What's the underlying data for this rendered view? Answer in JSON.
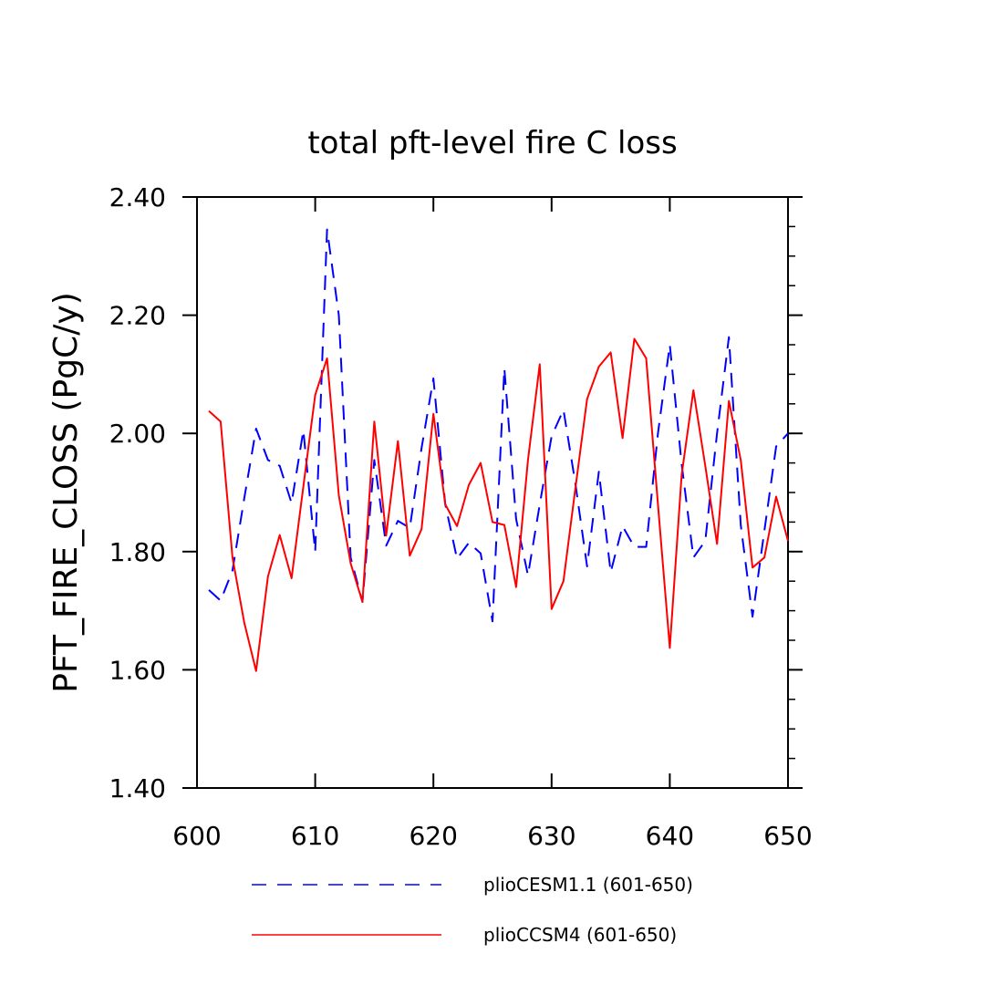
{
  "chart_data": {
    "type": "line",
    "title": "total pft-level fire C loss",
    "xlabel": "",
    "ylabel": "PFT_FIRE_CLOSS  (PgC/y)",
    "xlim": [
      600,
      650
    ],
    "ylim": [
      1.4,
      2.4
    ],
    "x_ticks": [
      600,
      610,
      620,
      630,
      640,
      650
    ],
    "x_tick_labels": [
      "600",
      "610",
      "620",
      "630",
      "640",
      "650"
    ],
    "y_ticks": [
      1.4,
      1.6,
      1.8,
      2.0,
      2.2,
      2.4
    ],
    "y_tick_labels": [
      "1.40",
      "1.60",
      "1.80",
      "2.00",
      "2.20",
      "2.40"
    ],
    "grid": false,
    "legend_position": "bottom",
    "x": [
      601,
      602,
      603,
      604,
      605,
      606,
      607,
      608,
      609,
      610,
      611,
      612,
      613,
      614,
      615,
      616,
      617,
      618,
      619,
      620,
      621,
      622,
      623,
      624,
      625,
      626,
      627,
      628,
      629,
      630,
      631,
      632,
      633,
      634,
      635,
      636,
      637,
      638,
      639,
      640,
      641,
      642,
      643,
      644,
      645,
      646,
      647,
      648,
      649,
      650
    ],
    "series": [
      {
        "name": "plioCESM1.1 (601-650)",
        "color": "#0000ff",
        "dash": "dashed",
        "values": [
          1.735,
          1.717,
          1.768,
          1.89,
          2.008,
          1.955,
          1.945,
          1.882,
          2.005,
          1.8,
          2.345,
          2.2,
          1.79,
          1.715,
          1.955,
          1.81,
          1.852,
          1.84,
          1.975,
          2.093,
          1.88,
          1.788,
          1.815,
          1.797,
          1.682,
          2.11,
          1.855,
          1.76,
          1.88,
          1.995,
          2.04,
          1.917,
          1.775,
          1.935,
          1.765,
          1.843,
          1.808,
          1.808,
          2.0,
          2.15,
          1.948,
          1.79,
          1.818,
          2.0,
          2.163,
          1.845,
          1.69,
          1.835,
          1.978,
          2.0
        ]
      },
      {
        "name": "plioCCSM4 (601-650)",
        "color": "#ff0000",
        "dash": "solid",
        "values": [
          2.038,
          2.02,
          1.79,
          1.68,
          1.598,
          1.758,
          1.828,
          1.755,
          1.91,
          2.065,
          2.127,
          1.895,
          1.78,
          1.715,
          2.02,
          1.827,
          1.987,
          1.793,
          1.838,
          2.033,
          1.88,
          1.843,
          1.913,
          1.95,
          1.85,
          1.845,
          1.74,
          1.955,
          2.117,
          1.703,
          1.75,
          1.905,
          2.058,
          2.113,
          2.137,
          1.992,
          2.16,
          2.127,
          1.88,
          1.637,
          1.93,
          2.073,
          1.945,
          1.813,
          2.055,
          1.955,
          1.773,
          1.79,
          1.893,
          1.818
        ]
      }
    ]
  }
}
